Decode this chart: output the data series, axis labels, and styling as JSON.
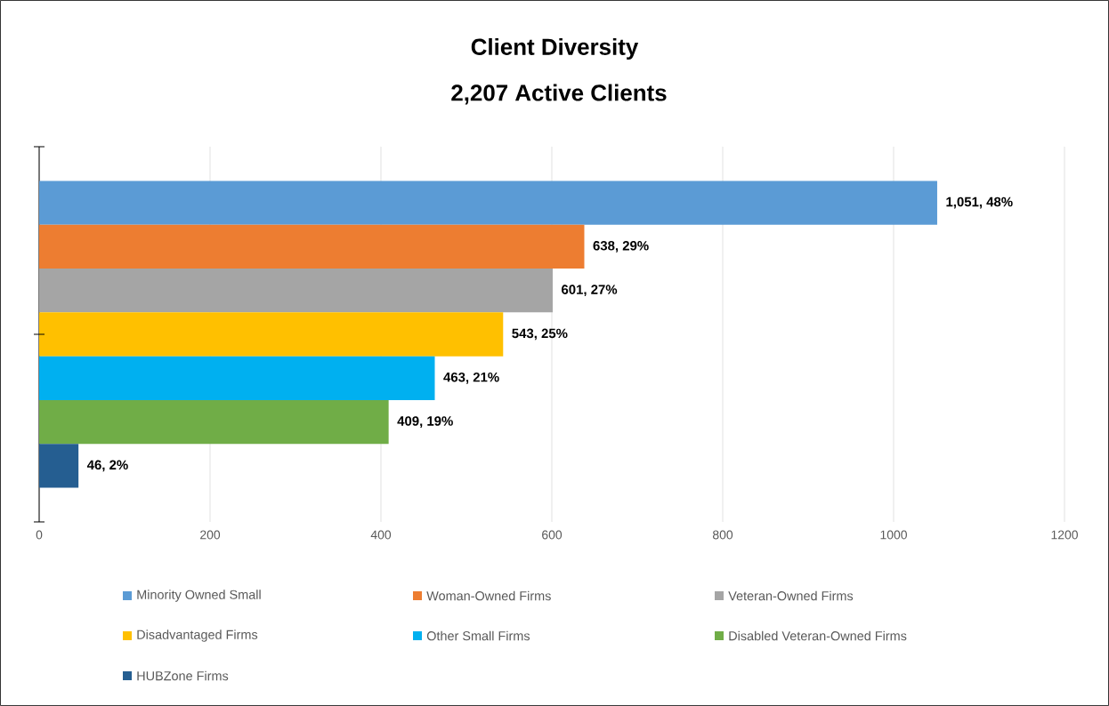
{
  "chart_data": {
    "type": "bar",
    "orientation": "horizontal",
    "title": "Client Diversity",
    "subtitle": "2,207 Active Clients",
    "categories": [
      null
    ],
    "series": [
      {
        "name": "Minority Owned Small",
        "color": "#5b9bd5",
        "values": [
          1051
        ],
        "value_labels": [
          "1,051, 48%"
        ]
      },
      {
        "name": "Woman-Owned Firms",
        "color": "#ed7d31",
        "values": [
          638
        ],
        "value_labels": [
          "638, 29%"
        ]
      },
      {
        "name": "Veteran-Owned Firms",
        "color": "#a5a5a5",
        "values": [
          601
        ],
        "value_labels": [
          "601, 27%"
        ]
      },
      {
        "name": "Disadvantaged Firms",
        "color": "#ffc000",
        "values": [
          543
        ],
        "value_labels": [
          "543, 25%"
        ]
      },
      {
        "name": "Other Small Firms",
        "color": "#00b0f0",
        "values": [
          463
        ],
        "value_labels": [
          "463, 21%"
        ]
      },
      {
        "name": "Disabled Veteran-Owned Firms",
        "color": "#70ad47",
        "values": [
          409
        ],
        "value_labels": [
          "409, 19%"
        ]
      },
      {
        "name": "HUBZone Firms",
        "color": "#255e91",
        "values": [
          46
        ],
        "value_labels": [
          "46, 2%"
        ]
      }
    ],
    "xlim": [
      0,
      1200
    ],
    "xticks": [
      0,
      200,
      400,
      600,
      800,
      1000,
      1200
    ],
    "grid": "x",
    "legend": "bottom"
  }
}
